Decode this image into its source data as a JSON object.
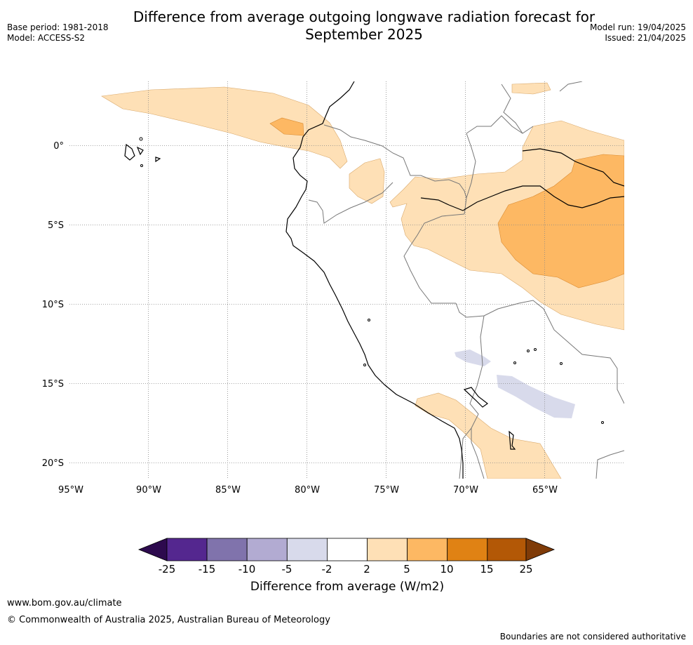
{
  "title": "Difference from average outgoing longwave radiation forecast for September 2025",
  "title_line1": "Difference from average outgoing longwave radiation forecast for",
  "title_line2": "September 2025",
  "meta": {
    "base_period": "Base period: 1981-2018",
    "model": "Model: ACCESS-S2",
    "model_run": "Model run: 19/04/2025",
    "issued": "Issued: 21/04/2025"
  },
  "map": {
    "lon_range": [
      -95,
      -60
    ],
    "lat_range": [
      -21,
      4
    ],
    "lon_ticks": [
      "95°W",
      "90°W",
      "85°W",
      "80°W",
      "75°W",
      "70°W",
      "65°W"
    ],
    "lat_ticks": [
      "0°",
      "5°S",
      "10°S",
      "15°S",
      "20°S"
    ]
  },
  "colorbar": {
    "label": "Difference from average (W/m2)",
    "ticks": [
      "-25",
      "-15",
      "-10",
      "-5",
      "-2",
      "2",
      "5",
      "10",
      "15",
      "25"
    ],
    "colors": [
      "#2d0a4e",
      "#54278f",
      "#8073ac",
      "#b2abd2",
      "#d8daeb",
      "#ffffff",
      "#fee0b6",
      "#fdb863",
      "#e08214",
      "#b35806",
      "#7f3b08"
    ]
  },
  "footer": {
    "url": "www.bom.gov.au/climate",
    "copyright": "© Commonwealth of Australia 2025, Australian Bureau of Meteorology",
    "note": "Boundaries are not considered authoritative"
  }
}
